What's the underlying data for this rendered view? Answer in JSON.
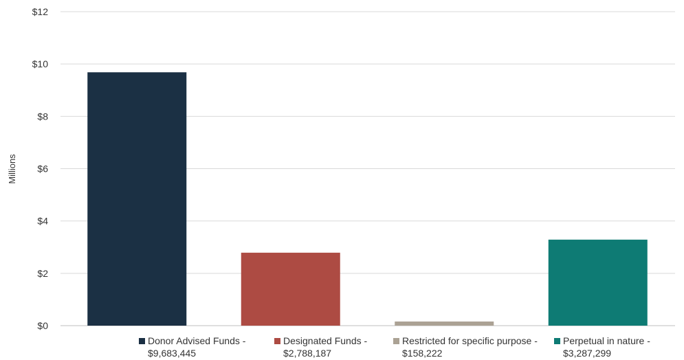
{
  "chart_data": {
    "type": "bar",
    "ylabel": "Millions",
    "xlabel": "",
    "ylim": [
      0,
      12
    ],
    "yticks": [
      0,
      2,
      4,
      6,
      8,
      10,
      12
    ],
    "ytick_labels": [
      "$0",
      "$2",
      "$4",
      "$6",
      "$8",
      "$10",
      "$12"
    ],
    "grid": true,
    "legend_position": "bottom",
    "series": [
      {
        "label_line1": "Donor Advised Funds -",
        "label_line2": "$9,683,445",
        "value": 9.683445,
        "color": "#1b3044"
      },
      {
        "label_line1": "Designated Funds -",
        "label_line2": "$2,788,187",
        "value": 2.788187,
        "color": "#ad4b43"
      },
      {
        "label_line1": "Restricted for specific purpose -",
        "label_line2": "$158,222",
        "value": 0.158222,
        "color": "#aba294"
      },
      {
        "label_line1": "Perpetual in nature -",
        "label_line2": "$3,287,299",
        "value": 3.287299,
        "color": "#0e7b74"
      }
    ]
  }
}
